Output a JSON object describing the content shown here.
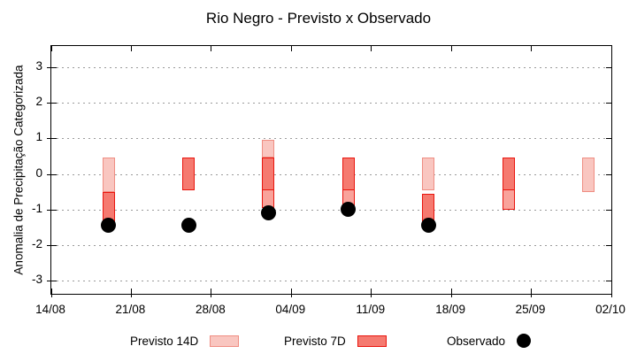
{
  "title": "Rio Negro - Previsto x Observado",
  "y_axis_label": "Anomalia de Precipitação Categorizada",
  "legend": {
    "previsto14_label": "Previsto 14D",
    "previsto7_label": "Previsto 7D",
    "observado_label": "Observado"
  },
  "colors": {
    "previsto14_fill": "#f9c6c0",
    "previsto14_border": "#ef8d82",
    "previsto7_fill": "#f57a70",
    "previsto7_border": "#e9150e",
    "previsto7_ext_fill": "#f9a39b",
    "observado": "#000000",
    "grid": "#9b9b9b"
  },
  "chart_data": {
    "type": "bar",
    "subtype": "forecast-interval-bars-with-observed-points",
    "title": "Rio Negro - Previsto x Observado",
    "xlabel": "",
    "ylabel": "Anomalia de Precipitação Categorizada",
    "ylim": [
      -3.4,
      3.6
    ],
    "y_ticks": [
      -3,
      -2,
      -1,
      0,
      1,
      2,
      3
    ],
    "x_tick_labels": [
      "14/08",
      "21/08",
      "28/08",
      "04/09",
      "11/09",
      "18/09",
      "25/09",
      "02/10"
    ],
    "x_tick_days": [
      0,
      7,
      14,
      21,
      28,
      35,
      42,
      49
    ],
    "grid": "horizontal dotted lines at integer values",
    "legend_position": "below chart",
    "series_labels": [
      "Previsto 14D",
      "Previsto 7D",
      "Observado"
    ],
    "clusters": [
      {
        "date": "19/08",
        "day": 5,
        "bars": [
          {
            "series": "Previsto 14D",
            "from": -0.5,
            "to": 0.45
          },
          {
            "series": "Previsto 7D",
            "from": -1.45,
            "to": -0.5
          }
        ],
        "observado": -1.45
      },
      {
        "date": "26/08",
        "day": 12,
        "bars": [
          {
            "series": "Previsto 7D",
            "from": -0.45,
            "to": 0.45
          }
        ],
        "observado": -1.45
      },
      {
        "date": "02/09",
        "day": 19,
        "bars": [
          {
            "series": "Previsto 14D",
            "from": 0.45,
            "to": 0.95
          },
          {
            "series": "Previsto 7D",
            "from": -0.45,
            "to": 0.45
          },
          {
            "series": "Previsto 7D ext",
            "from": -0.95,
            "to": -0.45
          }
        ],
        "observado": -1.1
      },
      {
        "date": "09/09",
        "day": 26,
        "bars": [
          {
            "series": "Previsto 7D",
            "from": -0.45,
            "to": 0.45
          },
          {
            "series": "Previsto 7D ext",
            "from": -0.95,
            "to": -0.45
          }
        ],
        "observado": -1.0
      },
      {
        "date": "16/09",
        "day": 33,
        "bars": [
          {
            "series": "Previsto 14D",
            "from": -0.45,
            "to": 0.45
          },
          {
            "series": "Previsto 7D",
            "from": -1.45,
            "to": -0.55
          }
        ],
        "observado": -1.45
      },
      {
        "date": "23/09",
        "day": 40,
        "bars": [
          {
            "series": "Previsto 7D",
            "from": -0.45,
            "to": 0.45
          },
          {
            "series": "Previsto 7D ext",
            "from": -1.0,
            "to": -0.45
          }
        ],
        "observado": null
      },
      {
        "date": "30/09",
        "day": 47,
        "bars": [
          {
            "series": "Previsto 14D",
            "from": -0.5,
            "to": 0.45
          }
        ],
        "observado": null
      }
    ]
  }
}
